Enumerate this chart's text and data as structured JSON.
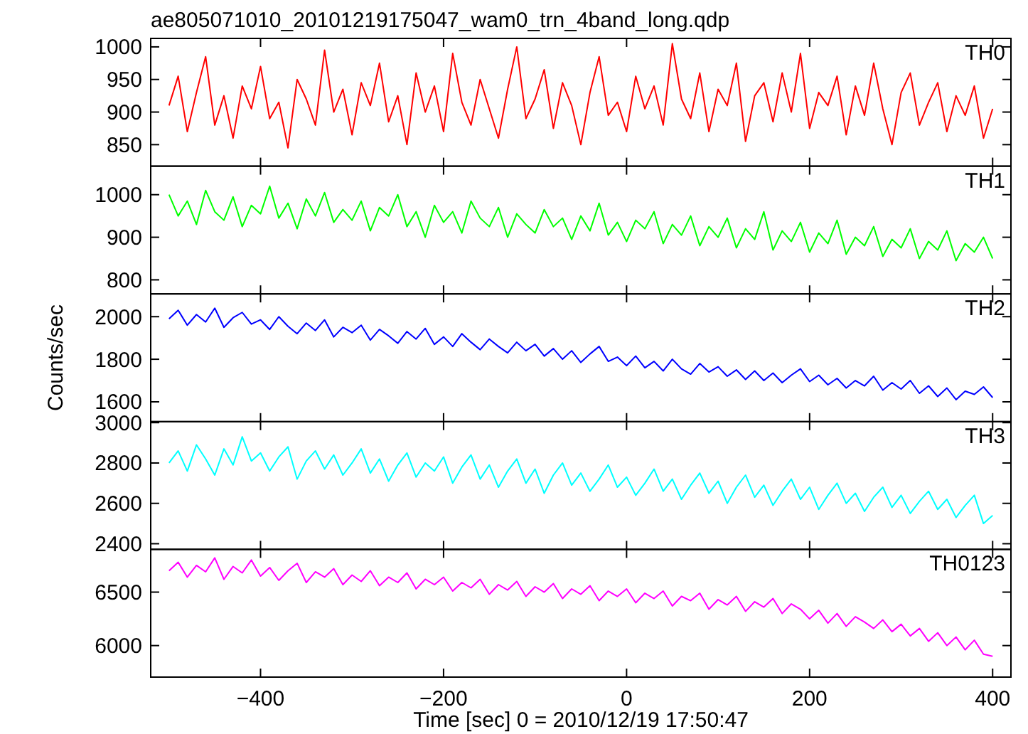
{
  "chart_data": [
    {
      "type": "line",
      "title": "ae805071010_20101219175047_wam0_trn_4band_long.qdp",
      "x": [
        -500,
        -490,
        -480,
        -470,
        -460,
        -450,
        -440,
        -430,
        -420,
        -410,
        -400,
        -390,
        -380,
        -370,
        -360,
        -350,
        -340,
        -330,
        -320,
        -310,
        -300,
        -290,
        -280,
        -270,
        -260,
        -250,
        -240,
        -230,
        -220,
        -210,
        -200,
        -190,
        -180,
        -170,
        -160,
        -150,
        -140,
        -130,
        -120,
        -110,
        -100,
        -90,
        -80,
        -70,
        -60,
        -50,
        -40,
        -30,
        -20,
        -10,
        0,
        10,
        20,
        30,
        40,
        50,
        60,
        70,
        80,
        90,
        100,
        110,
        120,
        130,
        140,
        150,
        160,
        170,
        180,
        190,
        200,
        210,
        220,
        230,
        240,
        250,
        260,
        270,
        280,
        290,
        300,
        310,
        320,
        330,
        340,
        350,
        360,
        370,
        380,
        390,
        400
      ],
      "xlim": [
        -520,
        420
      ],
      "xticks": [
        -400,
        -200,
        0,
        200,
        400
      ],
      "ylim": [
        817,
        1013
      ],
      "yticks": [
        850,
        900,
        950,
        1000
      ],
      "tick_labels": "y",
      "series": [
        {
          "name": "TH0",
          "color": "#ff0000",
          "values": [
            910,
            955,
            870,
            930,
            985,
            880,
            925,
            860,
            940,
            905,
            970,
            890,
            915,
            845,
            950,
            920,
            880,
            995,
            900,
            935,
            865,
            945,
            910,
            975,
            885,
            925,
            850,
            960,
            900,
            940,
            870,
            990,
            915,
            880,
            950,
            905,
            860,
            935,
            1000,
            890,
            920,
            965,
            875,
            945,
            910,
            850,
            930,
            985,
            895,
            915,
            870,
            955,
            905,
            940,
            880,
            1005,
            920,
            890,
            960,
            870,
            935,
            910,
            975,
            855,
            925,
            945,
            885,
            960,
            900,
            990,
            875,
            930,
            910,
            955,
            865,
            940,
            895,
            975,
            905,
            850,
            930,
            960,
            880,
            915,
            945,
            870,
            925,
            895,
            940,
            860,
            905
          ]
        }
      ]
    },
    {
      "type": "line",
      "x": [
        -500,
        -490,
        -480,
        -470,
        -460,
        -450,
        -440,
        -430,
        -420,
        -410,
        -400,
        -390,
        -380,
        -370,
        -360,
        -350,
        -340,
        -330,
        -320,
        -310,
        -300,
        -290,
        -280,
        -270,
        -260,
        -250,
        -240,
        -230,
        -220,
        -210,
        -200,
        -190,
        -180,
        -170,
        -160,
        -150,
        -140,
        -130,
        -120,
        -110,
        -100,
        -90,
        -80,
        -70,
        -60,
        -50,
        -40,
        -30,
        -20,
        -10,
        0,
        10,
        20,
        30,
        40,
        50,
        60,
        70,
        80,
        90,
        100,
        110,
        120,
        130,
        140,
        150,
        160,
        170,
        180,
        190,
        200,
        210,
        220,
        230,
        240,
        250,
        260,
        270,
        280,
        290,
        300,
        310,
        320,
        330,
        340,
        350,
        360,
        370,
        380,
        390,
        400
      ],
      "xlim": [
        -520,
        420
      ],
      "xticks": [
        -400,
        -200,
        0,
        200,
        400
      ],
      "ylim": [
        767,
        1067
      ],
      "yticks": [
        800,
        900,
        1000
      ],
      "tick_labels": "y",
      "series": [
        {
          "name": "TH1",
          "color": "#00ff00",
          "values": [
            1000,
            950,
            985,
            930,
            1010,
            960,
            940,
            995,
            925,
            975,
            955,
            1020,
            945,
            980,
            920,
            990,
            950,
            1005,
            935,
            965,
            940,
            985,
            915,
            970,
            950,
            1000,
            925,
            960,
            900,
            975,
            935,
            960,
            910,
            985,
            945,
            925,
            970,
            900,
            955,
            930,
            910,
            965,
            925,
            945,
            895,
            950,
            915,
            980,
            905,
            935,
            890,
            940,
            920,
            960,
            885,
            930,
            905,
            950,
            880,
            925,
            900,
            945,
            875,
            920,
            895,
            960,
            870,
            915,
            890,
            935,
            865,
            910,
            885,
            940,
            860,
            900,
            880,
            925,
            855,
            895,
            875,
            920,
            850,
            890,
            870,
            915,
            845,
            885,
            865,
            900,
            850
          ]
        }
      ]
    },
    {
      "type": "line",
      "ylabel": "Counts/sec",
      "x": [
        -500,
        -490,
        -480,
        -470,
        -460,
        -450,
        -440,
        -430,
        -420,
        -410,
        -400,
        -390,
        -380,
        -370,
        -360,
        -350,
        -340,
        -330,
        -320,
        -310,
        -300,
        -290,
        -280,
        -270,
        -260,
        -250,
        -240,
        -230,
        -220,
        -210,
        -200,
        -190,
        -180,
        -170,
        -160,
        -150,
        -140,
        -130,
        -120,
        -110,
        -100,
        -90,
        -80,
        -70,
        -60,
        -50,
        -40,
        -30,
        -20,
        -10,
        0,
        10,
        20,
        30,
        40,
        50,
        60,
        70,
        80,
        90,
        100,
        110,
        120,
        130,
        140,
        150,
        160,
        170,
        180,
        190,
        200,
        210,
        220,
        230,
        240,
        250,
        260,
        270,
        280,
        290,
        300,
        310,
        320,
        330,
        340,
        350,
        360,
        370,
        380,
        390,
        400
      ],
      "xlim": [
        -520,
        420
      ],
      "xticks": [
        -400,
        -200,
        0,
        200,
        400
      ],
      "ylim": [
        1507,
        2107
      ],
      "yticks": [
        1600,
        1800,
        2000
      ],
      "tick_labels": "y",
      "series": [
        {
          "name": "TH2",
          "color": "#0000ff",
          "values": [
            1990,
            2030,
            1960,
            2010,
            1975,
            2040,
            1950,
            1995,
            2020,
            1965,
            1985,
            1940,
            2000,
            1955,
            1920,
            1970,
            1935,
            1985,
            1905,
            1950,
            1925,
            1960,
            1890,
            1940,
            1910,
            1875,
            1930,
            1895,
            1945,
            1870,
            1905,
            1860,
            1920,
            1880,
            1845,
            1895,
            1860,
            1830,
            1880,
            1840,
            1870,
            1815,
            1850,
            1800,
            1840,
            1785,
            1825,
            1860,
            1790,
            1810,
            1770,
            1815,
            1760,
            1790,
            1745,
            1800,
            1755,
            1730,
            1780,
            1740,
            1765,
            1720,
            1750,
            1705,
            1745,
            1700,
            1735,
            1690,
            1725,
            1755,
            1695,
            1725,
            1680,
            1710,
            1665,
            1700,
            1675,
            1720,
            1655,
            1690,
            1660,
            1700,
            1640,
            1675,
            1625,
            1665,
            1610,
            1650,
            1635,
            1670,
            1620
          ]
        }
      ]
    },
    {
      "type": "line",
      "x": [
        -500,
        -490,
        -480,
        -470,
        -460,
        -450,
        -440,
        -430,
        -420,
        -410,
        -400,
        -390,
        -380,
        -370,
        -360,
        -350,
        -340,
        -330,
        -320,
        -310,
        -300,
        -290,
        -280,
        -270,
        -260,
        -250,
        -240,
        -230,
        -220,
        -210,
        -200,
        -190,
        -180,
        -170,
        -160,
        -150,
        -140,
        -130,
        -120,
        -110,
        -100,
        -90,
        -80,
        -70,
        -60,
        -50,
        -40,
        -30,
        -20,
        -10,
        0,
        10,
        20,
        30,
        40,
        50,
        60,
        70,
        80,
        90,
        100,
        110,
        120,
        130,
        140,
        150,
        160,
        170,
        180,
        190,
        200,
        210,
        220,
        230,
        240,
        250,
        260,
        270,
        280,
        290,
        300,
        310,
        320,
        330,
        340,
        350,
        360,
        370,
        380,
        390,
        400
      ],
      "xlim": [
        -520,
        420
      ],
      "xticks": [
        -400,
        -200,
        0,
        200,
        400
      ],
      "ylim": [
        2372,
        3005
      ],
      "yticks": [
        2400,
        2600,
        2800,
        3000
      ],
      "tick_labels": "y",
      "series": [
        {
          "name": "TH3",
          "color": "#00ffff",
          "values": [
            2800,
            2860,
            2760,
            2890,
            2820,
            2740,
            2870,
            2790,
            2930,
            2810,
            2850,
            2760,
            2830,
            2880,
            2720,
            2810,
            2860,
            2770,
            2840,
            2740,
            2800,
            2870,
            2750,
            2820,
            2710,
            2790,
            2850,
            2730,
            2800,
            2760,
            2830,
            2700,
            2780,
            2840,
            2720,
            2790,
            2680,
            2760,
            2820,
            2700,
            2770,
            2650,
            2740,
            2800,
            2690,
            2750,
            2660,
            2720,
            2790,
            2680,
            2730,
            2640,
            2700,
            2770,
            2660,
            2720,
            2620,
            2690,
            2750,
            2650,
            2710,
            2600,
            2680,
            2740,
            2630,
            2690,
            2590,
            2660,
            2720,
            2620,
            2680,
            2570,
            2640,
            2700,
            2600,
            2650,
            2560,
            2630,
            2680,
            2580,
            2640,
            2550,
            2610,
            2660,
            2570,
            2620,
            2530,
            2590,
            2640,
            2500,
            2540
          ]
        }
      ]
    },
    {
      "type": "line",
      "xlabel": "Time [sec] 0 = 2010/12/19 17:50:47",
      "x": [
        -500,
        -490,
        -480,
        -470,
        -460,
        -450,
        -440,
        -430,
        -420,
        -410,
        -400,
        -390,
        -380,
        -370,
        -360,
        -350,
        -340,
        -330,
        -320,
        -310,
        -300,
        -290,
        -280,
        -270,
        -260,
        -250,
        -240,
        -230,
        -220,
        -210,
        -200,
        -190,
        -180,
        -170,
        -160,
        -150,
        -140,
        -130,
        -120,
        -110,
        -100,
        -90,
        -80,
        -70,
        -60,
        -50,
        -40,
        -30,
        -20,
        -10,
        0,
        10,
        20,
        30,
        40,
        50,
        60,
        70,
        80,
        90,
        100,
        110,
        120,
        130,
        140,
        150,
        160,
        170,
        180,
        190,
        200,
        210,
        220,
        230,
        240,
        250,
        260,
        270,
        280,
        290,
        300,
        310,
        320,
        330,
        340,
        350,
        360,
        370,
        380,
        390,
        400
      ],
      "xlim": [
        -520,
        420
      ],
      "xticks": [
        -400,
        -200,
        0,
        200,
        400
      ],
      "ylim": [
        5705,
        6900
      ],
      "yticks": [
        6000,
        6500
      ],
      "series": [
        {
          "name": "TH0123",
          "color": "#ff00ff",
          "values": [
            6700,
            6780,
            6640,
            6750,
            6690,
            6820,
            6620,
            6740,
            6680,
            6800,
            6650,
            6730,
            6610,
            6700,
            6770,
            6590,
            6690,
            6640,
            6720,
            6570,
            6660,
            6600,
            6700,
            6560,
            6640,
            6590,
            6680,
            6530,
            6620,
            6570,
            6640,
            6510,
            6590,
            6540,
            6620,
            6480,
            6570,
            6520,
            6600,
            6460,
            6550,
            6500,
            6580,
            6440,
            6530,
            6480,
            6560,
            6420,
            6510,
            6460,
            6530,
            6400,
            6490,
            6440,
            6510,
            6370,
            6460,
            6420,
            6490,
            6340,
            6430,
            6380,
            6460,
            6320,
            6410,
            6360,
            6440,
            6300,
            6390,
            6340,
            6250,
            6330,
            6210,
            6300,
            6180,
            6270,
            6220,
            6160,
            6240,
            6130,
            6200,
            6090,
            6160,
            6040,
            6120,
            6000,
            6080,
            5960,
            6050,
            5920,
            5900
          ]
        }
      ]
    }
  ]
}
